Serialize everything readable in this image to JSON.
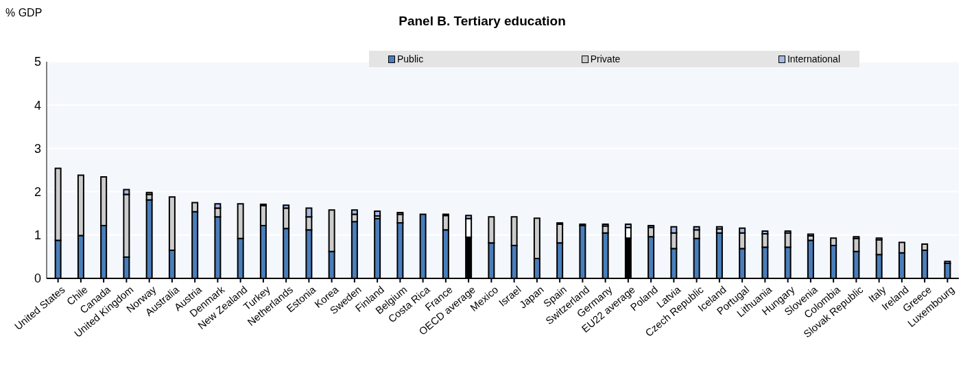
{
  "chart_data": {
    "type": "bar",
    "title": "Panel B. Tertiary education",
    "ylabel": "% GDP",
    "stacked": true,
    "ylim": [
      0,
      5
    ],
    "yticks": [
      0,
      1,
      2,
      3,
      4,
      5
    ],
    "grid": "y",
    "legend": "top",
    "categories": [
      "United States",
      "Chile",
      "Canada",
      "United Kingdom",
      "Norway",
      "Australia",
      "Austria",
      "Denmark",
      "New Zealand",
      "Turkey",
      "Netherlands",
      "Estonia",
      "Korea",
      "Sweden",
      "Finland",
      "Belgium",
      "Costa Rica",
      "France",
      "OECD average",
      "Mexico",
      "Israel",
      "Japan",
      "Spain",
      "Switzerland",
      "Germany",
      "EU22 average",
      "Poland",
      "Latvia",
      "Czech Republic",
      "Iceland",
      "Portugal",
      "Lithuania",
      "Hungary",
      "Slovenia",
      "Colombia",
      "Slovak Republic",
      "Italy",
      "Ireland",
      "Greece",
      "Luxembourg"
    ],
    "series": [
      {
        "name": "Public",
        "color": "#4a7ebb",
        "colors": [
          "#4a7ebb",
          "#4a7ebb",
          "#4a7ebb",
          "#4a7ebb",
          "#4a7ebb",
          "#4a7ebb",
          "#4a7ebb",
          "#4a7ebb",
          "#4a7ebb",
          "#4a7ebb",
          "#4a7ebb",
          "#4a7ebb",
          "#4a7ebb",
          "#4a7ebb",
          "#4a7ebb",
          "#4a7ebb",
          "#4a7ebb",
          "#4a7ebb",
          "#000000",
          "#4a7ebb",
          "#4a7ebb",
          "#4a7ebb",
          "#4a7ebb",
          "#4a7ebb",
          "#4a7ebb",
          "#000000",
          "#4a7ebb",
          "#4a7ebb",
          "#4a7ebb",
          "#4a7ebb",
          "#4a7ebb",
          "#4a7ebb",
          "#4a7ebb",
          "#4a7ebb",
          "#4a7ebb",
          "#4a7ebb",
          "#4a7ebb",
          "#4a7ebb",
          "#4a7ebb",
          "#4a7ebb"
        ],
        "values": [
          0.88,
          0.99,
          1.22,
          0.49,
          1.81,
          0.65,
          1.54,
          1.42,
          0.92,
          1.22,
          1.15,
          1.12,
          0.62,
          1.31,
          1.38,
          1.28,
          1.48,
          1.12,
          0.95,
          0.82,
          0.76,
          0.46,
          0.82,
          1.22,
          1.05,
          0.93,
          0.96,
          0.69,
          0.92,
          1.05,
          0.69,
          0.72,
          0.72,
          0.88,
          0.76,
          0.62,
          0.55,
          0.59,
          0.65,
          0.35
        ]
      },
      {
        "name": "Private",
        "color": "#cccccc",
        "colors": [
          "#cccccc",
          "#cccccc",
          "#cccccc",
          "#cccccc",
          "#cccccc",
          "#cccccc",
          "#cccccc",
          "#cccccc",
          "#cccccc",
          "#cccccc",
          "#cccccc",
          "#cccccc",
          "#cccccc",
          "#cccccc",
          "#cccccc",
          "#cccccc",
          "#cccccc",
          "#cccccc",
          "#ffffff",
          "#cccccc",
          "#cccccc",
          "#cccccc",
          "#cccccc",
          "#cccccc",
          "#cccccc",
          "#ffffff",
          "#cccccc",
          "#cccccc",
          "#cccccc",
          "#cccccc",
          "#cccccc",
          "#cccccc",
          "#cccccc",
          "#cccccc",
          "#cccccc",
          "#cccccc",
          "#cccccc",
          "#cccccc",
          "#cccccc",
          "#cccccc"
        ],
        "values": [
          1.66,
          1.39,
          1.12,
          1.45,
          0.13,
          1.23,
          0.21,
          0.2,
          0.8,
          0.46,
          0.47,
          0.3,
          0.96,
          0.17,
          0.06,
          0.2,
          0,
          0.33,
          0.43,
          0.6,
          0.66,
          0.93,
          0.43,
          0,
          0.16,
          0.24,
          0.22,
          0.36,
          0.2,
          0.09,
          0.36,
          0.31,
          0.33,
          0.1,
          0.17,
          0.3,
          0.34,
          0.24,
          0.14,
          0
        ]
      },
      {
        "name": "International",
        "color": "#a6b8e0",
        "values": [
          0,
          0,
          0,
          0.11,
          0.04,
          0,
          0,
          0.1,
          0,
          0.03,
          0.07,
          0.2,
          0,
          0.1,
          0.11,
          0.04,
          0,
          0.03,
          0.07,
          0,
          0,
          0,
          0.03,
          0.03,
          0.04,
          0.08,
          0.04,
          0.14,
          0.07,
          0.05,
          0.11,
          0.06,
          0.04,
          0.04,
          0,
          0.04,
          0.04,
          0,
          0,
          0.04
        ]
      }
    ]
  }
}
